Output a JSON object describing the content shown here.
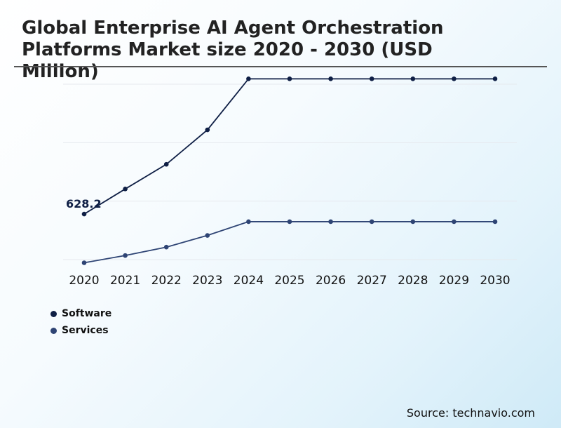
{
  "title": "Global Enterprise AI Agent Orchestration Platforms Market size 2020 - 2030 (USD Million)",
  "source": "Source: technavio.com",
  "colors": {
    "software": "#0f1f45",
    "services": "#2e4474",
    "grid": "#e6e9ee",
    "title_rule": "#555555"
  },
  "chart_data": {
    "type": "line",
    "title": "Global Enterprise AI Agent Orchestration Platforms Market size 2020 - 2030 (USD Million)",
    "xlabel": "",
    "ylabel": "",
    "x": [
      "2020",
      "2021",
      "2022",
      "2023",
      "2024",
      "2025",
      "2026",
      "2027",
      "2028",
      "2029",
      "2030"
    ],
    "series": [
      {
        "name": "Software",
        "color": "#0f1f45",
        "values": [
          628.2,
          787,
          943,
          1161,
          1484,
          1484,
          1484,
          1484,
          1484,
          1484,
          1484
        ]
      },
      {
        "name": "Services",
        "color": "#2e4474",
        "values": [
          320,
          366,
          419,
          493,
          580,
          580,
          580,
          580,
          580,
          580,
          580
        ]
      }
    ],
    "annotations": [
      {
        "series": 0,
        "index": 0,
        "text": "628.2"
      }
    ],
    "ylim": [
      150,
      1500
    ],
    "y_gridlines": [
      340,
      710,
      1080,
      1450
    ],
    "y_tick_labels_visible": false,
    "grid": true,
    "legend_position": "bottom-left"
  }
}
